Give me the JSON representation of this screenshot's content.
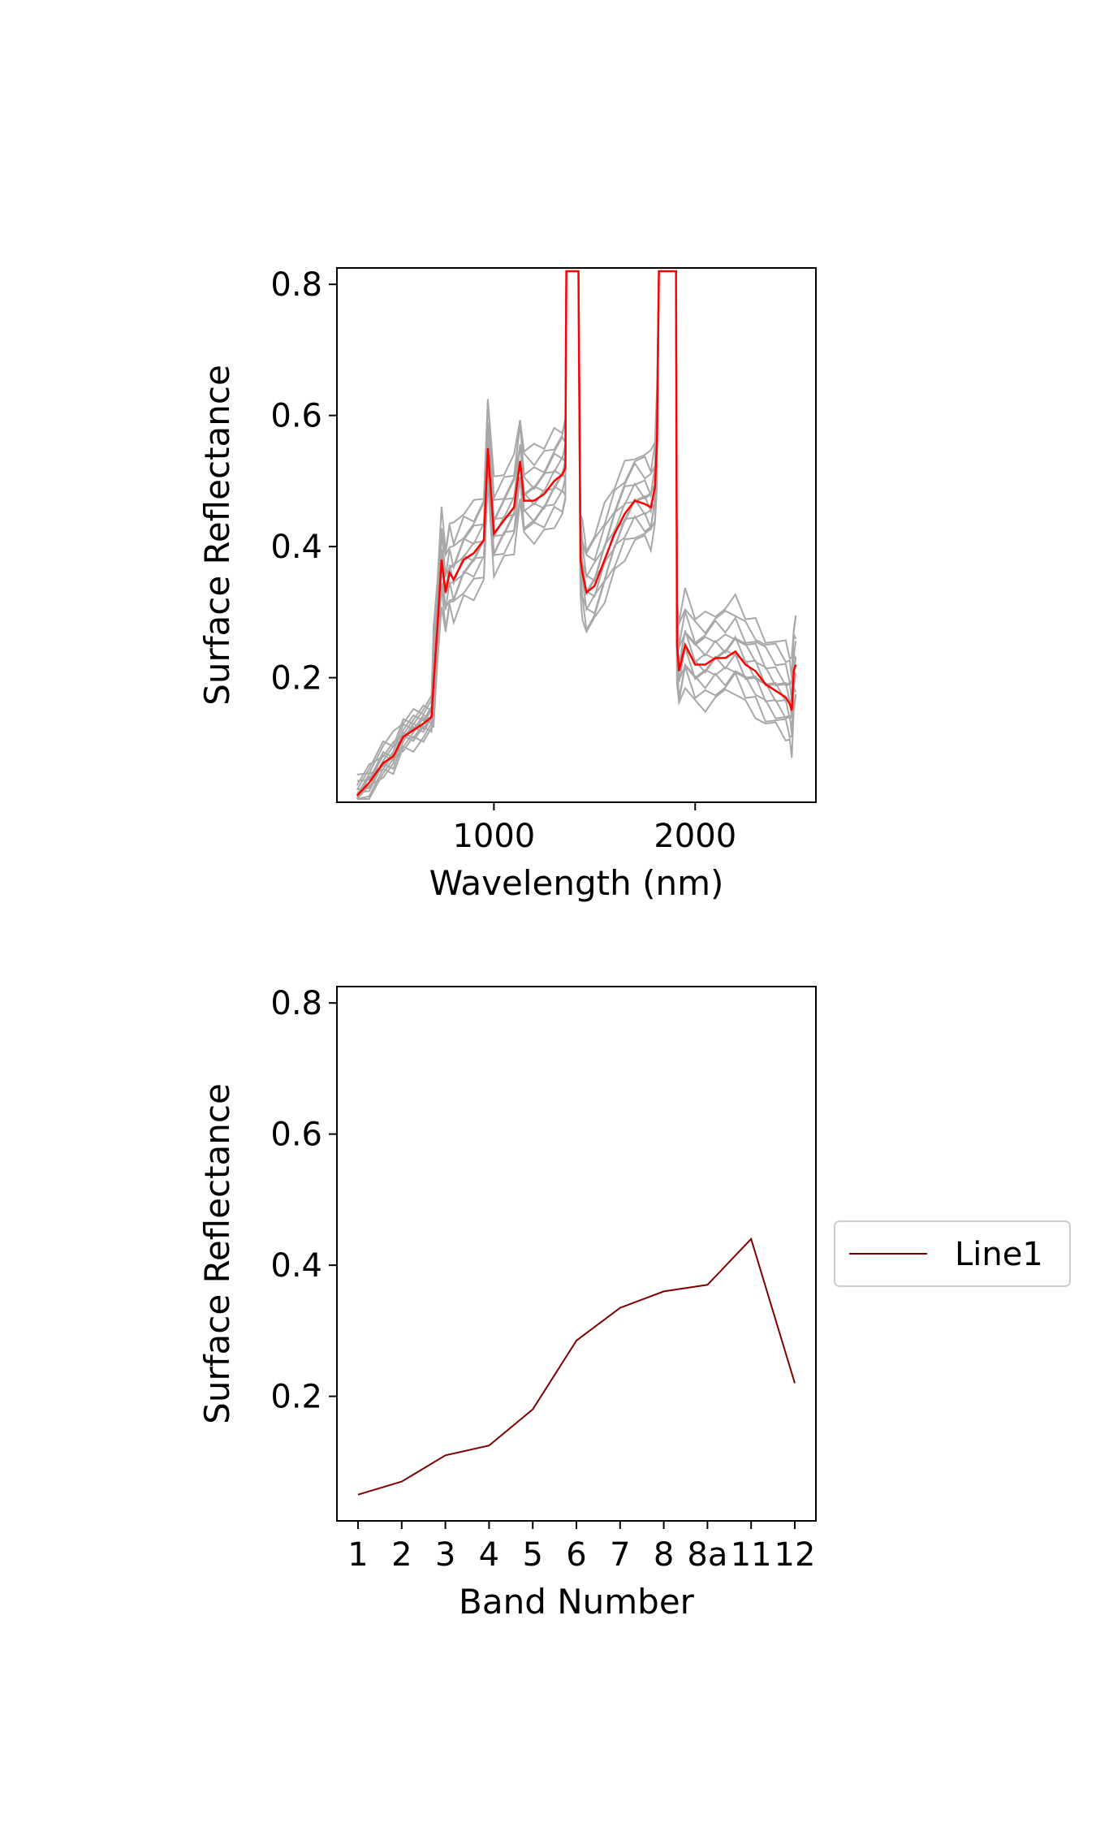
{
  "chart_data": [
    {
      "type": "line",
      "xlabel": "Wavelength (nm)",
      "ylabel": "Surface Reflectance",
      "xlim": [
        220,
        2600
      ],
      "ylim": [
        0.01,
        0.825
      ],
      "xticks": [
        1000,
        2000
      ],
      "xtick_labels": [
        "1000",
        "2000"
      ],
      "yticks": [
        0.2,
        0.4,
        0.6,
        0.8
      ],
      "ytick_labels": [
        "0.2",
        "0.4",
        "0.6",
        "0.8"
      ],
      "grid": false,
      "colors": {
        "gray_series": "#a8a8a8",
        "highlight_series": "#ff0000"
      },
      "gray_series_count": 12,
      "highlight_series": {
        "x": [
          320,
          380,
          450,
          500,
          550,
          600,
          650,
          690,
          700,
          720,
          740,
          760,
          780,
          800,
          850,
          900,
          950,
          970,
          1000,
          1050,
          1100,
          1130,
          1150,
          1200,
          1250,
          1300,
          1340,
          1355,
          1360,
          1365,
          1370,
          1375,
          1380,
          1385,
          1390,
          1395,
          1400,
          1410,
          1420,
          1430,
          1440,
          1460,
          1500,
          1550,
          1600,
          1650,
          1700,
          1750,
          1780,
          1800,
          1810,
          1820,
          1830,
          1840,
          1850,
          1860,
          1870,
          1880,
          1890,
          1900,
          1905,
          1910,
          1920,
          1950,
          2000,
          2050,
          2100,
          2150,
          2200,
          2250,
          2300,
          2350,
          2400,
          2450,
          2470,
          2480,
          2490,
          2500
        ],
        "y": [
          0.02,
          0.04,
          0.07,
          0.08,
          0.11,
          0.12,
          0.13,
          0.14,
          0.19,
          0.28,
          0.38,
          0.33,
          0.36,
          0.35,
          0.38,
          0.39,
          0.41,
          0.55,
          0.42,
          0.44,
          0.46,
          0.53,
          0.47,
          0.47,
          0.48,
          0.5,
          0.51,
          0.52,
          0.82,
          0.82,
          0.82,
          0.82,
          0.82,
          0.82,
          0.82,
          0.82,
          0.82,
          0.82,
          0.82,
          0.38,
          0.36,
          0.33,
          0.34,
          0.38,
          0.42,
          0.45,
          0.47,
          0.465,
          0.46,
          0.49,
          0.56,
          0.82,
          0.82,
          0.82,
          0.82,
          0.82,
          0.82,
          0.82,
          0.82,
          0.82,
          0.82,
          0.25,
          0.21,
          0.25,
          0.22,
          0.22,
          0.23,
          0.23,
          0.24,
          0.22,
          0.21,
          0.19,
          0.18,
          0.17,
          0.16,
          0.15,
          0.21,
          0.22
        ]
      },
      "gray_offsets": [
        -0.06,
        -0.045,
        -0.03,
        -0.02,
        -0.01,
        0.0,
        0.01,
        0.02,
        0.03,
        0.045,
        0.06,
        0.075
      ]
    },
    {
      "type": "line",
      "xlabel": "Band Number",
      "ylabel": "Surface Reflectance",
      "ylim": [
        0.01,
        0.825
      ],
      "yticks": [
        0.2,
        0.4,
        0.6,
        0.8
      ],
      "ytick_labels": [
        "0.2",
        "0.4",
        "0.6",
        "0.8"
      ],
      "categories": [
        "1",
        "2",
        "3",
        "4",
        "5",
        "6",
        "7",
        "8",
        "8a",
        "11",
        "12"
      ],
      "series": [
        {
          "name": "Line1",
          "color": "#800000",
          "values": [
            0.05,
            0.07,
            0.11,
            0.125,
            0.18,
            0.285,
            0.335,
            0.36,
            0.37,
            0.44,
            0.22
          ]
        }
      ],
      "legend": {
        "placement": "right-outside",
        "entries": [
          "Line1"
        ]
      },
      "grid": false
    }
  ]
}
